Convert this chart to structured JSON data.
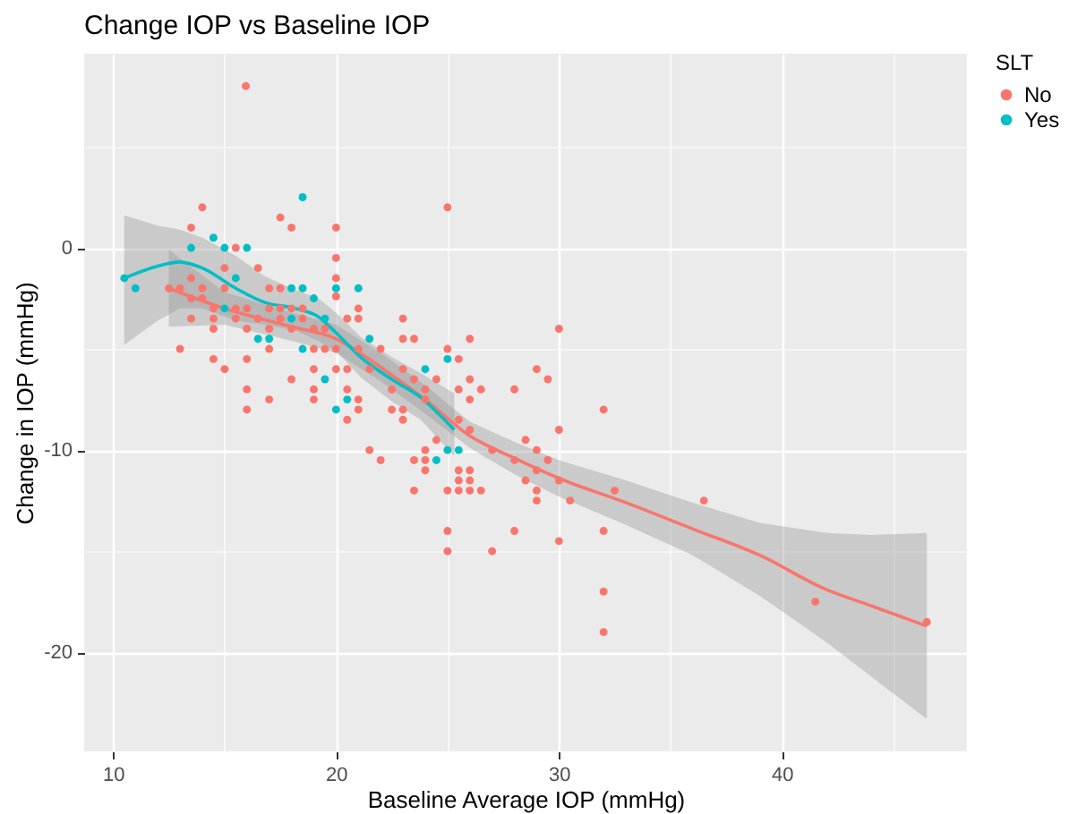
{
  "chart_data": {
    "type": "scatter",
    "title": "Change IOP vs Baseline IOP",
    "xlabel": "Baseline Average IOP (mmHg)",
    "ylabel": "Change in IOP (mmHg)",
    "legend_title": "SLT",
    "legend": "right",
    "grid": true,
    "marker": "circle",
    "xlim": [
      8.7,
      48.3
    ],
    "ylim": [
      -24.9,
      9.6
    ],
    "xticks": [
      10,
      {
        "value": 15,
        "label": null
      },
      20,
      {
        "value": 25,
        "label": null
      },
      30,
      {
        "value": 35,
        "label": null
      },
      40,
      {
        "value": 45,
        "label": null
      }
    ],
    "yticks": [
      -20,
      {
        "value": -15,
        "label": null
      },
      -10,
      {
        "value": -5,
        "label": null
      },
      0,
      {
        "value": 5,
        "label": null
      }
    ],
    "series": [
      {
        "name": "No",
        "color": "#f8766d",
        "x": [
          15.95,
          14,
          17.5,
          18,
          20,
          25,
          13.5,
          15.5,
          20,
          20,
          20,
          12.5,
          13,
          14,
          15,
          17,
          17.5,
          13.5,
          13.5,
          14,
          15,
          13.5,
          14.5,
          14.5,
          14.5,
          15.5,
          15.5,
          16,
          16,
          16.5,
          16.5,
          17,
          17,
          17,
          17.5,
          17.5,
          18,
          18,
          18.5,
          18.5,
          19,
          19.5,
          19,
          19.5,
          20,
          20.5,
          21,
          21,
          21,
          13,
          14.5,
          15,
          16,
          16,
          16,
          17,
          18,
          19,
          19,
          19,
          20,
          20.5,
          20.5,
          21,
          21,
          20.5,
          21.5,
          22,
          23,
          23,
          23.5,
          23,
          22.5,
          22.5,
          23,
          23,
          23.5,
          24,
          24.5,
          24,
          25,
          25.5,
          26,
          25.5,
          26,
          26,
          26.5,
          28,
          29,
          29.5,
          30,
          24.5,
          25.5,
          26,
          21.5,
          28.5,
          29,
          32,
          30,
          32.5,
          32,
          30,
          28,
          27,
          25,
          25,
          23.5,
          25,
          25.5,
          26,
          26.5,
          25.5,
          26,
          25.5,
          26,
          24,
          23.5,
          24,
          24,
          22,
          27,
          28,
          29,
          29,
          29,
          29.5,
          30,
          30.5,
          28.5,
          36.5,
          32,
          32,
          41.5,
          46.5
        ],
        "values": [
          8,
          2,
          1.5,
          1,
          1,
          2,
          1,
          0,
          -0.5,
          -1.5,
          -2.4,
          -2,
          -2,
          -2,
          -2,
          -2,
          -2,
          -1.5,
          -2.5,
          -2.5,
          -1,
          -3.5,
          -3,
          -3.5,
          -4,
          -3,
          -3.5,
          -3,
          -4,
          -1,
          -3.5,
          -3,
          -4,
          -5,
          -3,
          -3.5,
          -3,
          -4,
          -3,
          -3.5,
          -4,
          -4,
          -5,
          -5,
          -5,
          -3.5,
          -3,
          -3.5,
          -5,
          -5,
          -5.5,
          -6,
          -5.5,
          -7,
          -8,
          -7.5,
          -6.5,
          -6,
          -7,
          -7.5,
          -6,
          -6,
          -7,
          -7.5,
          -8,
          -8.5,
          -6,
          -5,
          -3.5,
          -4.5,
          -4.5,
          -6,
          -7,
          -8,
          -8,
          -8.5,
          -6.5,
          -7,
          -6.5,
          -7.5,
          -5,
          -5.5,
          -4.5,
          -7,
          -6.5,
          -7.5,
          -7,
          -7,
          -6,
          -6.5,
          -4,
          -9.5,
          -8.5,
          -9,
          -10,
          -9.5,
          -10,
          -8,
          -9,
          -12,
          -14,
          -14.5,
          -14,
          -15,
          -15,
          -14,
          -12,
          -12,
          -12,
          -12,
          -12,
          -11.5,
          -11.5,
          -11,
          -11,
          -11,
          -10.5,
          -10.5,
          -10,
          -10.5,
          -10,
          -10.5,
          -11,
          -12,
          -12.5,
          -10.5,
          -11.5,
          -12.5,
          -11.5,
          -12.5,
          -17,
          -19,
          -17.5,
          -18.5
        ]
      },
      {
        "name": "Yes",
        "color": "#00bfc4",
        "x": [
          18.5,
          13.5,
          14.5,
          15,
          16,
          20,
          10.5,
          11,
          18,
          18.5,
          21,
          15.5,
          15,
          16.5,
          17,
          18,
          18.5,
          19,
          19.5,
          21.5,
          19.5,
          20,
          20.5,
          24,
          25,
          25,
          25.5,
          24.5
        ],
        "values": [
          2.5,
          0,
          0.5,
          0,
          0,
          -2,
          -1.5,
          -2,
          -2,
          -2,
          -2,
          -1.5,
          -3,
          -4.5,
          -4.5,
          -3.5,
          -5,
          -2.5,
          -3.5,
          -4.5,
          -6.5,
          -8,
          -7.5,
          -6,
          -5.5,
          -10,
          -10,
          -10.5
        ]
      },
      {
        "type": "line",
        "marker": "none",
        "color": "#f8766d",
        "x": [
          12.5,
          15,
          18,
          20,
          22,
          24,
          26,
          28,
          30,
          33,
          36,
          39,
          42,
          44,
          46.5
        ],
        "values": [
          -2,
          -3,
          -3.9,
          -4.5,
          -5.9,
          -7.5,
          -9.3,
          -10.4,
          -11.4,
          -12.6,
          -13.9,
          -15.2,
          -16.9,
          -17.7,
          -18.7
        ],
        "lower": [
          -3.9,
          -3.8,
          -4.6,
          -5.2,
          -6.6,
          -8.2,
          -9.9,
          -11.2,
          -12.3,
          -13.7,
          -15.2,
          -17.2,
          -19.5,
          -21.2,
          -23.3
        ],
        "upper": [
          -0.1,
          -2.2,
          -3.2,
          -3.8,
          -5.2,
          -6.8,
          -8.6,
          -9.6,
          -10.5,
          -11.5,
          -12.6,
          -13.6,
          -14.1,
          -14.2,
          -14.1
        ]
      },
      {
        "type": "line",
        "marker": "none",
        "color": "#00bfc4",
        "x": [
          10.5,
          12,
          13,
          14,
          15.5,
          16.8,
          18.2,
          19.2,
          20,
          21.1,
          22.5,
          23.8,
          25.3
        ],
        "values": [
          -1.5,
          -0.9,
          -0.7,
          -1,
          -2,
          -2.7,
          -3,
          -3.4,
          -4.2,
          -5.4,
          -6.5,
          -7.4,
          -9
        ],
        "lower": [
          -4.8,
          -3.6,
          -3,
          -3,
          -3.6,
          -3.8,
          -4.1,
          -4.6,
          -5.1,
          -6.4,
          -7.6,
          -8.5,
          -10.3
        ],
        "upper": [
          1.6,
          1.1,
          0.9,
          0.5,
          -0.4,
          -1.4,
          -2.1,
          -2.5,
          -3.2,
          -4.4,
          -5.4,
          -6.2,
          -7.2
        ]
      }
    ]
  }
}
